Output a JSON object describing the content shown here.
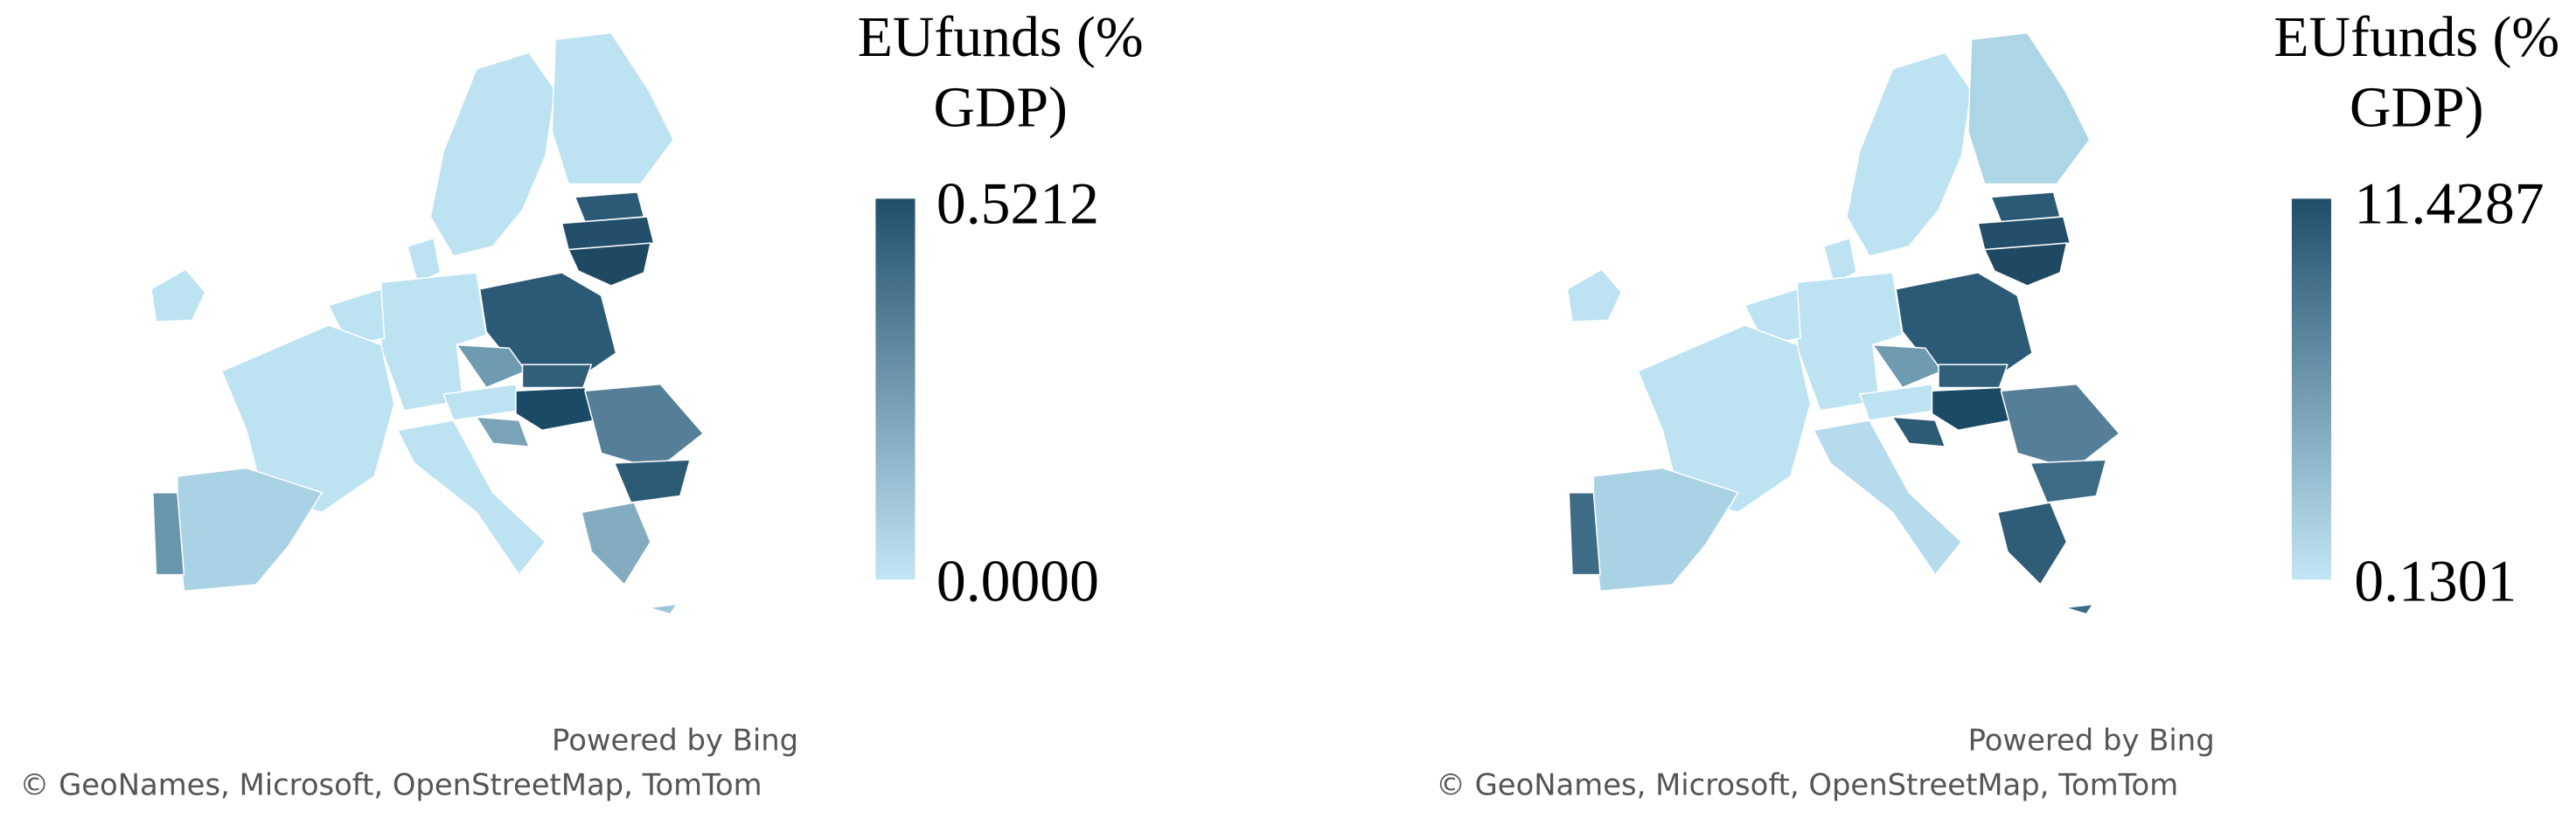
{
  "maps": [
    {
      "legend": {
        "title_lines": [
          "EUfunds (%",
          "GDP)"
        ],
        "max": "0.5212",
        "min": "0.0000"
      },
      "attribution": {
        "powered_by": "Powered by Bing",
        "credits": "© GeoNames, Microsoft, OpenStreetMap, TomTom"
      }
    },
    {
      "legend": {
        "title_lines": [
          "EUfunds (%",
          "GDP)"
        ],
        "max": "11.4287",
        "min": "0.1301"
      },
      "attribution": {
        "powered_by": "Powered by Bing",
        "credits": "© GeoNames, Microsoft, OpenStreetMap, TomTom"
      }
    }
  ]
}
